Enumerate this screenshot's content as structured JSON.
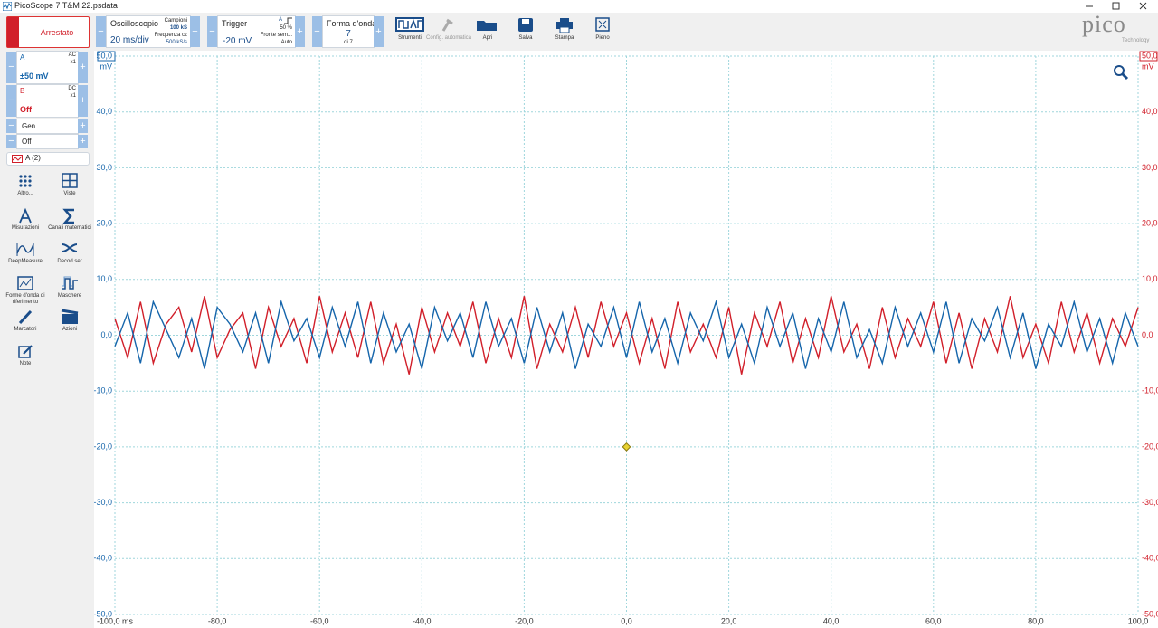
{
  "window": {
    "title": "PicoScope 7 T&M 22.psdata"
  },
  "toolbar": {
    "run_button": "Arrestato",
    "scope": {
      "label": "Oscilloscopio",
      "timebase": "20 ms/div",
      "samples_label": "Campioni",
      "samples": "100 kS",
      "rate_label": "Frequenza cz",
      "rate": "500 kS/s"
    },
    "trigger": {
      "label": "Trigger",
      "level": "-20 mV",
      "channel": "A",
      "position": "50 %",
      "type": "Fronte sem...",
      "mode": "Auto"
    },
    "waveform": {
      "label": "Forma d'onda",
      "current": 7,
      "total": "di 7"
    },
    "tools": [
      "Strumenti",
      "Config. automatica",
      "Apri",
      "Salva",
      "Stampa",
      "Pieno"
    ],
    "logo": "pico",
    "logo_sub": "Technology"
  },
  "sidebar": {
    "channel_a": {
      "name": "A",
      "coupling": "AC",
      "probe": "x1",
      "range": "±50 mV"
    },
    "channel_b": {
      "name": "B",
      "coupling": "DC",
      "probe": "x1",
      "range": "Off"
    },
    "generator": {
      "name": "Gen",
      "state": "Off"
    },
    "view_tab": "A (2)",
    "tools": [
      "Altro...",
      "Viste",
      "Misurazioni",
      "Canali matematici",
      "DeepMeasure",
      "Decod ser",
      "Forme d'onda di riferimento",
      "Maschere",
      "Marcatori",
      "Azioni",
      "Note"
    ]
  },
  "chart_data": {
    "type": "line",
    "y_unit": "mV",
    "x": [
      -100,
      -97.5,
      -95,
      -92.5,
      -90,
      -87.5,
      -85,
      -82.5,
      -80,
      -77.5,
      -75,
      -72.5,
      -70,
      -67.5,
      -65,
      -62.5,
      -60,
      -57.5,
      -55,
      -52.5,
      -50,
      -47.5,
      -45,
      -42.5,
      -40,
      -37.5,
      -35,
      -32.5,
      -30,
      -27.5,
      -25,
      -22.5,
      -20,
      -17.5,
      -15,
      -12.5,
      -10,
      -7.5,
      -5,
      -2.5,
      0,
      2.5,
      5,
      7.5,
      10,
      12.5,
      15,
      17.5,
      20,
      22.5,
      25,
      27.5,
      30,
      32.5,
      35,
      37.5,
      40,
      42.5,
      45,
      47.5,
      50,
      52.5,
      55,
      57.5,
      60,
      62.5,
      65,
      67.5,
      70,
      72.5,
      75,
      77.5,
      80,
      82.5,
      85,
      87.5,
      90,
      92.5,
      95,
      97.5,
      100
    ],
    "series": [
      {
        "name": "B",
        "color": "#d11f2a",
        "values": [
          3,
          -4,
          6,
          -5,
          2,
          5,
          -3,
          7,
          -4,
          1,
          4,
          -6,
          5,
          -2,
          3,
          -5,
          7,
          -3,
          4,
          -4,
          6,
          -5,
          2,
          -7,
          5,
          -3,
          4,
          -2,
          6,
          -5,
          3,
          -4,
          7,
          -6,
          2,
          -3,
          5,
          -4,
          6,
          -2,
          4,
          -5,
          3,
          -6,
          6,
          -3,
          2,
          -4,
          5,
          -7,
          4,
          -2,
          6,
          -5,
          3,
          -4,
          7,
          -3,
          2,
          -6,
          5,
          -4,
          3,
          -2,
          6,
          -5,
          4,
          -6,
          3,
          -3,
          7,
          -4,
          2,
          -5,
          6,
          -3,
          4,
          -5,
          3,
          -2,
          5
        ]
      },
      {
        "name": "A",
        "color": "#1565ab",
        "values": [
          -2,
          4,
          -5,
          6,
          1,
          -4,
          3,
          -6,
          5,
          2,
          -3,
          4,
          -5,
          6,
          -1,
          3,
          -4,
          5,
          -2,
          6,
          -5,
          4,
          -3,
          2,
          -6,
          5,
          -1,
          4,
          -4,
          6,
          -2,
          3,
          -5,
          5,
          -3,
          4,
          -6,
          2,
          -2,
          5,
          -4,
          6,
          -3,
          3,
          -5,
          4,
          -1,
          6,
          -4,
          2,
          -5,
          5,
          -2,
          4,
          -6,
          3,
          -3,
          6,
          -4,
          1,
          -5,
          5,
          -2,
          4,
          -3,
          6,
          -5,
          3,
          -1,
          5,
          -4,
          4,
          -6,
          2,
          -2,
          6,
          -3,
          3,
          -5,
          4,
          -2
        ]
      }
    ],
    "trigger_point": {
      "x": 0,
      "y": -20
    },
    "xlim": [
      -100,
      100
    ],
    "xticks": [
      {
        "value": -100,
        "label": "-100,0 ms"
      },
      {
        "value": -80,
        "label": "-80,0"
      },
      {
        "value": -60,
        "label": "-60,0"
      },
      {
        "value": -40,
        "label": "-40,0"
      },
      {
        "value": -20,
        "label": "-20,0"
      },
      {
        "value": 0,
        "label": "0,0"
      },
      {
        "value": 20,
        "label": "20,0"
      },
      {
        "value": 40,
        "label": "40,0"
      },
      {
        "value": 60,
        "label": "60,0"
      },
      {
        "value": 80,
        "label": "80,0"
      },
      {
        "value": 100,
        "label": "100,0"
      }
    ],
    "ylim": [
      -50,
      50
    ],
    "yticks": [
      {
        "value": 50,
        "label": "50,0"
      },
      {
        "value": 40,
        "label": "40,0"
      },
      {
        "value": 30,
        "label": "30,0"
      },
      {
        "value": 20,
        "label": "20,0"
      },
      {
        "value": 10,
        "label": "10,0"
      },
      {
        "value": 0,
        "label": "0,0"
      },
      {
        "value": -10,
        "label": "-10,0"
      },
      {
        "value": -20,
        "label": "-20,0"
      },
      {
        "value": -30,
        "label": "-30,0"
      },
      {
        "value": -40,
        "label": "-40,0"
      },
      {
        "value": -50,
        "label": "-50,0"
      }
    ],
    "grid": true
  }
}
